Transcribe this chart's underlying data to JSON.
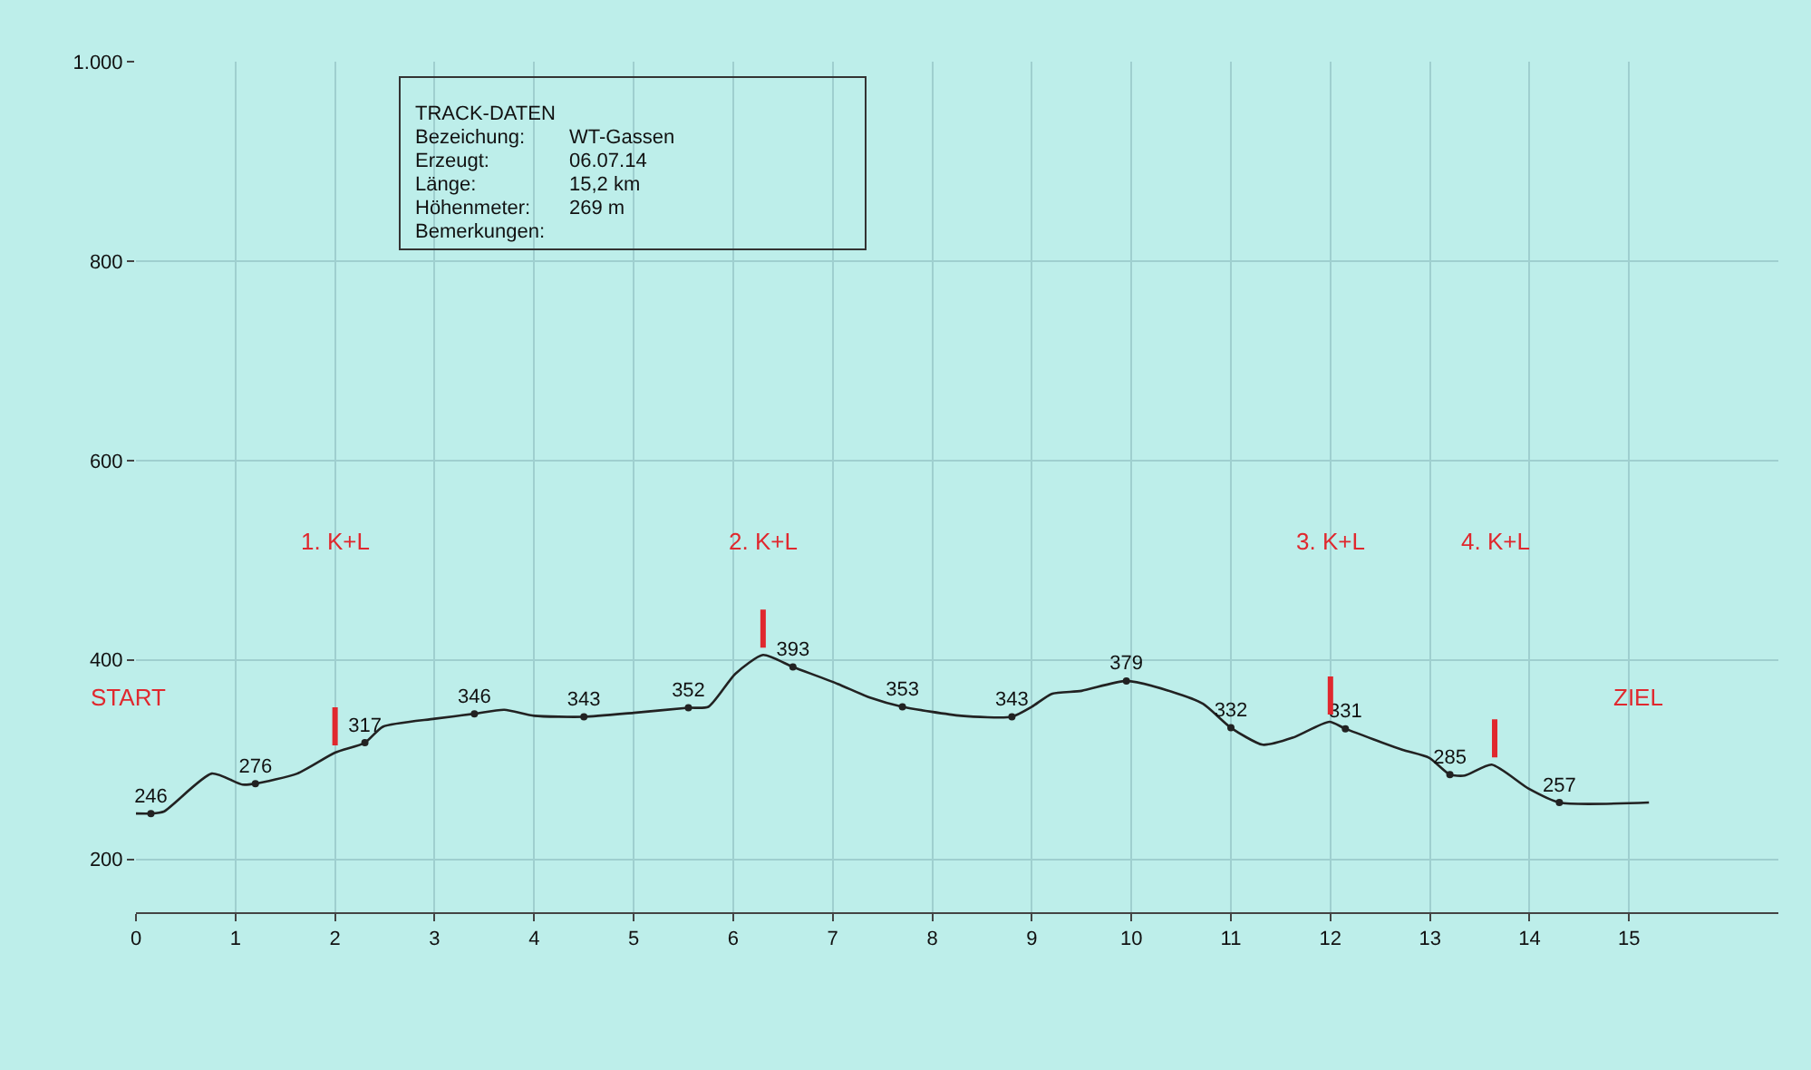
{
  "chart_data": {
    "type": "line",
    "title": "TRACK-DATEN",
    "subtitle": "Bezeichung: WT-Gassen\nErzeugt: 06.07.14\nLänge: 15,2 km\nHöhenmeter: 269 m\nBemerkungen:",
    "xlim": [
      0,
      16.5
    ],
    "xticks": [
      0,
      1,
      2,
      3,
      4,
      5,
      6,
      7,
      8,
      9,
      10,
      11,
      12,
      13,
      14,
      15
    ],
    "ylim": [
      147,
      1000
    ],
    "yticks": [
      200,
      400,
      600,
      800,
      {
        "value": 1000,
        "label": "1.000"
      }
    ],
    "grid": true,
    "line_style": "solid",
    "series": [
      {
        "color": "#222222",
        "marker": "none",
        "x": [
          0,
          0.15,
          0.28,
          0.76,
          1.07,
          1.2,
          1.62,
          2.0,
          2.3,
          2.48,
          3.0,
          3.4,
          3.7,
          4.0,
          4.5,
          5.0,
          5.55,
          5.75,
          6.02,
          6.3,
          6.6,
          7.05,
          7.38,
          7.7,
          8.29,
          8.8,
          9.0,
          9.2,
          9.5,
          9.95,
          10.41,
          10.72,
          11.0,
          11.32,
          11.62,
          11.99,
          12.15,
          12.72,
          12.99,
          13.2,
          13.35,
          13.62,
          13.99,
          14.3,
          15.2
        ],
        "values": [
          246,
          246,
          248,
          286,
          275,
          276,
          286,
          307,
          317,
          333,
          341,
          346,
          350,
          344,
          343,
          347,
          352,
          353,
          386,
          405,
          393,
          376,
          362,
          353,
          344,
          343,
          353,
          366,
          369,
          379,
          368,
          356,
          332,
          315,
          322,
          338,
          331,
          310,
          302,
          285,
          284,
          295,
          271,
          257,
          257
        ]
      },
      {
        "type": "scatter",
        "color": "#222222",
        "marker": "circle",
        "x": [
          0.15,
          1.2,
          2.3,
          3.4,
          4.5,
          5.55,
          6.6,
          7.7,
          8.8,
          9.95,
          11.0,
          12.15,
          13.2,
          14.3
        ],
        "values": [
          246,
          276,
          317,
          346,
          343,
          352,
          393,
          353,
          343,
          379,
          332,
          331,
          285,
          257
        ],
        "value_labels": [
          "246",
          "276",
          "317",
          "346",
          "343",
          "352",
          "393",
          "353",
          "343",
          "379",
          "332",
          "331",
          "285",
          "257"
        ]
      }
    ],
    "annotations": [
      "START",
      "ZIEL",
      {
        "text": "1. K+L",
        "x": 2,
        "y": 307
      },
      {
        "text": "2. K+L",
        "x": 6.3,
        "y": 405
      },
      {
        "text": "3. K+L",
        "x": 12,
        "y": 338
      },
      {
        "text": "4. K+L",
        "x": 13.65,
        "y": 295
      }
    ]
  }
}
